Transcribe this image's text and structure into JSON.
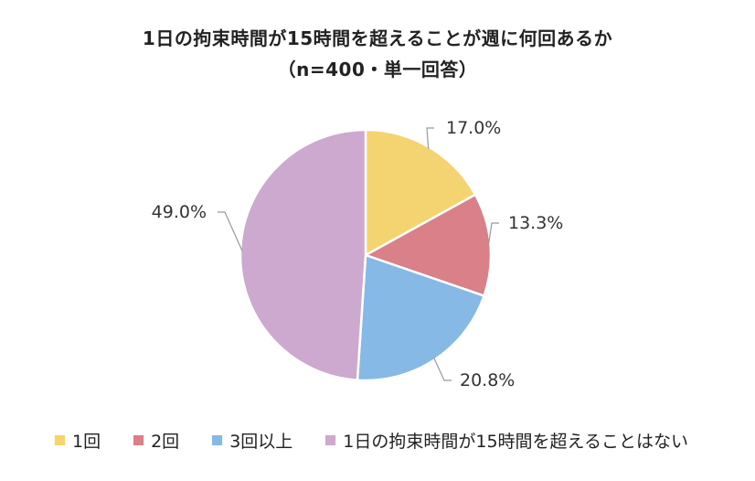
{
  "chart_data": {
    "type": "pie",
    "title": "1日の拘束時間が15時間を超えることが週に何回あるか",
    "subtitle": "（n=400・単一回答）",
    "categories": [
      "1回",
      "2回",
      "3回以上",
      "1日の拘束時間が15時間を超えることはない"
    ],
    "values": [
      17.0,
      13.3,
      20.8,
      49.0
    ],
    "data_labels": [
      "17.0%",
      "13.3%",
      "20.8%",
      "49.0%"
    ],
    "colors": [
      "#f4d470",
      "#d98088",
      "#87b9e6",
      "#cda9d0"
    ],
    "legend_position": "bottom",
    "start_angle": "12 o'clock, clockwise"
  }
}
